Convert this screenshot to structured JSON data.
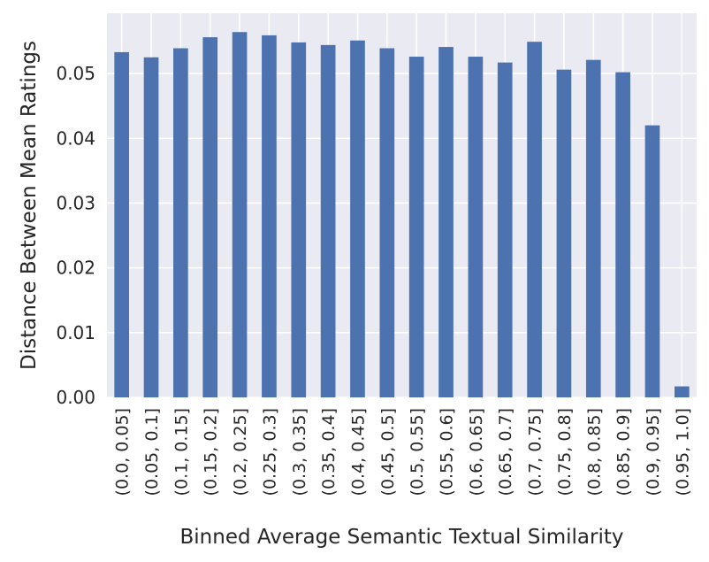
{
  "chart_data": {
    "type": "bar",
    "title": "",
    "xlabel": "Binned Average Semantic Textual Similarity",
    "ylabel": "Distance Between Mean Ratings",
    "categories": [
      "(0.0, 0.05]",
      "(0.05, 0.1]",
      "(0.1, 0.15]",
      "(0.15, 0.2]",
      "(0.2, 0.25]",
      "(0.25, 0.3]",
      "(0.3, 0.35]",
      "(0.35, 0.4]",
      "(0.4, 0.45]",
      "(0.45, 0.5]",
      "(0.5, 0.55]",
      "(0.55, 0.6]",
      "(0.6, 0.65]",
      "(0.65, 0.7]",
      "(0.7, 0.75]",
      "(0.75, 0.8]",
      "(0.8, 0.85]",
      "(0.85, 0.9]",
      "(0.9, 0.95]",
      "(0.95, 1.0]"
    ],
    "values": [
      0.0533,
      0.0525,
      0.0539,
      0.0556,
      0.0564,
      0.0559,
      0.0548,
      0.0544,
      0.0551,
      0.0539,
      0.0526,
      0.0541,
      0.0526,
      0.0517,
      0.0549,
      0.0506,
      0.0521,
      0.0502,
      0.042,
      0.0017
    ],
    "yticks": [
      0.0,
      0.01,
      0.02,
      0.03,
      0.04,
      0.05
    ],
    "ytick_labels": [
      "0.00",
      "0.01",
      "0.02",
      "0.03",
      "0.04",
      "0.05"
    ],
    "ylim": [
      0,
      0.0593
    ],
    "grid": true,
    "legend": "none",
    "colors": {
      "bar": "#4c72b0",
      "plot_background": "#eaeaf2",
      "grid": "#ffffff",
      "text": "#262626"
    }
  }
}
